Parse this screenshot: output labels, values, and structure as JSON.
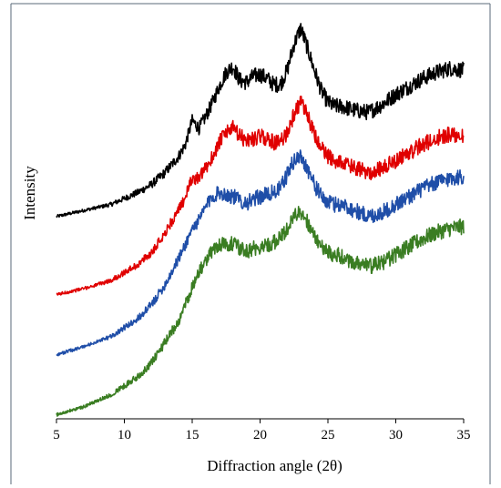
{
  "chart_data": {
    "type": "line",
    "title": "",
    "xlabel": "Diffraction angle (2θ)",
    "ylabel": "Intensity",
    "xlim": [
      5,
      35
    ],
    "x_ticks": [
      5,
      10,
      15,
      20,
      25,
      30,
      35
    ],
    "ylim": [
      0,
      1
    ],
    "y_ticks_shown": false,
    "grid": false,
    "legend": "none",
    "series": [
      {
        "color": "#000000",
        "x": [
          5,
          7,
          9,
          11,
          12,
          13,
          14,
          14.5,
          15,
          15.5,
          16,
          16.5,
          17,
          17.5,
          18,
          18.5,
          19,
          19.5,
          20,
          20.5,
          21,
          21.5,
          22,
          22.5,
          23,
          23.5,
          24,
          24.5,
          25,
          25.5,
          26,
          27,
          28,
          29,
          30,
          31,
          32,
          33,
          34,
          35
        ],
        "values": [
          0.505,
          0.52,
          0.535,
          0.565,
          0.585,
          0.615,
          0.655,
          0.685,
          0.745,
          0.725,
          0.755,
          0.79,
          0.83,
          0.865,
          0.88,
          0.845,
          0.84,
          0.855,
          0.86,
          0.85,
          0.835,
          0.835,
          0.87,
          0.935,
          0.975,
          0.925,
          0.87,
          0.82,
          0.79,
          0.78,
          0.78,
          0.77,
          0.765,
          0.785,
          0.81,
          0.83,
          0.85,
          0.865,
          0.875,
          0.87
        ]
      },
      {
        "color": "#e00000",
        "x": [
          5,
          7,
          9,
          11,
          12,
          13,
          14,
          14.5,
          15,
          15.5,
          16,
          16.5,
          17,
          17.5,
          18,
          18.5,
          19,
          19.5,
          20,
          20.5,
          21,
          21.5,
          22,
          22.5,
          23,
          23.5,
          24,
          24.5,
          25,
          25.5,
          26,
          27,
          28,
          29,
          30,
          31,
          32,
          33,
          34,
          35
        ],
        "values": [
          0.31,
          0.325,
          0.345,
          0.385,
          0.415,
          0.465,
          0.52,
          0.555,
          0.6,
          0.6,
          0.625,
          0.655,
          0.69,
          0.715,
          0.725,
          0.705,
          0.695,
          0.7,
          0.705,
          0.7,
          0.69,
          0.69,
          0.715,
          0.76,
          0.79,
          0.755,
          0.71,
          0.675,
          0.655,
          0.645,
          0.64,
          0.625,
          0.615,
          0.625,
          0.645,
          0.665,
          0.685,
          0.7,
          0.71,
          0.71
        ]
      },
      {
        "color": "#1f4ea8",
        "x": [
          5,
          7,
          9,
          11,
          12,
          13,
          14,
          14.5,
          15,
          15.5,
          16,
          16.5,
          17,
          17.5,
          18,
          18.5,
          19,
          19.5,
          20,
          20.5,
          21,
          21.5,
          22,
          22.5,
          23,
          23.5,
          24,
          24.5,
          25,
          25.5,
          26,
          27,
          28,
          29,
          30,
          31,
          32,
          33,
          34,
          35
        ],
        "values": [
          0.16,
          0.18,
          0.205,
          0.25,
          0.285,
          0.335,
          0.4,
          0.435,
          0.475,
          0.495,
          0.53,
          0.555,
          0.565,
          0.56,
          0.555,
          0.545,
          0.54,
          0.545,
          0.555,
          0.56,
          0.565,
          0.575,
          0.61,
          0.645,
          0.655,
          0.625,
          0.585,
          0.555,
          0.54,
          0.535,
          0.535,
          0.52,
          0.505,
          0.515,
          0.535,
          0.555,
          0.575,
          0.59,
          0.6,
          0.605
        ]
      },
      {
        "color": "#3a7d22",
        "x": [
          5,
          7,
          9,
          11,
          12,
          13,
          14,
          14.5,
          15,
          15.5,
          16,
          16.5,
          17,
          17.5,
          18,
          18.5,
          19,
          19.5,
          20,
          20.5,
          21,
          21.5,
          22,
          22.5,
          23,
          23.5,
          24,
          24.5,
          25,
          25.5,
          26,
          27,
          28,
          29,
          30,
          31,
          32,
          33,
          34,
          35
        ],
        "values": [
          0.01,
          0.03,
          0.06,
          0.105,
          0.14,
          0.19,
          0.245,
          0.285,
          0.33,
          0.365,
          0.395,
          0.42,
          0.435,
          0.44,
          0.435,
          0.425,
          0.42,
          0.425,
          0.43,
          0.435,
          0.44,
          0.45,
          0.475,
          0.505,
          0.515,
          0.49,
          0.455,
          0.43,
          0.415,
          0.41,
          0.405,
          0.39,
          0.38,
          0.39,
          0.41,
          0.43,
          0.45,
          0.465,
          0.475,
          0.48
        ]
      }
    ]
  }
}
